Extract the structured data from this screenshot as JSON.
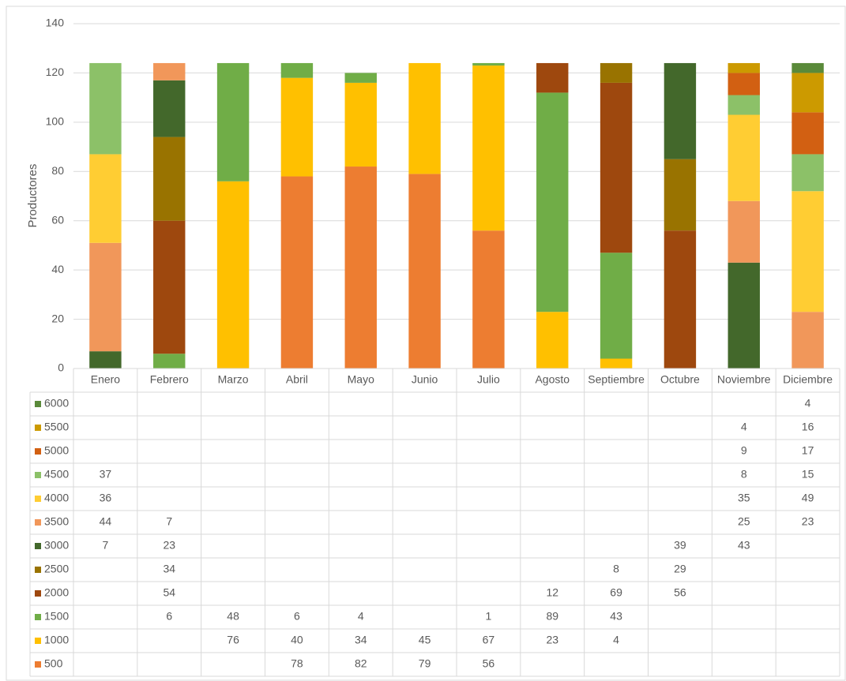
{
  "chart_data": {
    "type": "stacked_bar",
    "y_axis_label": "Productores",
    "categories": [
      "Enero",
      "Febrero",
      "Marzo",
      "Abril",
      "Mayo",
      "Junio",
      "Julio",
      "Agosto",
      "Septiembre",
      "Octubre",
      "Noviembre",
      "Diciembre"
    ],
    "ylim": [
      0,
      140
    ],
    "yticks": [
      0,
      20,
      40,
      60,
      80,
      100,
      120,
      140
    ],
    "grid": true,
    "series": [
      {
        "name": "500",
        "color": "#ed7d31",
        "values": [
          null,
          null,
          null,
          78,
          82,
          79,
          56,
          null,
          null,
          null,
          null,
          null
        ]
      },
      {
        "name": "1000",
        "color": "#ffc000",
        "values": [
          null,
          null,
          76,
          40,
          34,
          45,
          67,
          23,
          4,
          null,
          null,
          null
        ]
      },
      {
        "name": "1500",
        "color": "#70ad47",
        "values": [
          null,
          6,
          48,
          6,
          4,
          null,
          1,
          89,
          43,
          null,
          null,
          null
        ]
      },
      {
        "name": "2000",
        "color": "#9e480e",
        "values": [
          null,
          54,
          null,
          null,
          null,
          null,
          null,
          12,
          69,
          56,
          null,
          null
        ]
      },
      {
        "name": "2500",
        "color": "#997300",
        "values": [
          null,
          34,
          null,
          null,
          null,
          null,
          null,
          null,
          8,
          29,
          null,
          null
        ]
      },
      {
        "name": "3000",
        "color": "#43682b",
        "values": [
          7,
          23,
          null,
          null,
          null,
          null,
          null,
          null,
          null,
          39,
          43,
          null
        ]
      },
      {
        "name": "3500",
        "color": "#f1975a",
        "values": [
          44,
          7,
          null,
          null,
          null,
          null,
          null,
          null,
          null,
          null,
          25,
          23
        ]
      },
      {
        "name": "4000",
        "color": "#ffcd33",
        "values": [
          36,
          null,
          null,
          null,
          null,
          null,
          null,
          null,
          null,
          null,
          35,
          49
        ]
      },
      {
        "name": "4500",
        "color": "#8cc168",
        "values": [
          37,
          null,
          null,
          null,
          null,
          null,
          null,
          null,
          null,
          null,
          8,
          15
        ]
      },
      {
        "name": "5000",
        "color": "#d26012",
        "values": [
          null,
          null,
          null,
          null,
          null,
          null,
          null,
          null,
          null,
          null,
          9,
          17
        ]
      },
      {
        "name": "5500",
        "color": "#cc9a00",
        "values": [
          null,
          null,
          null,
          null,
          null,
          null,
          null,
          null,
          null,
          null,
          4,
          16
        ]
      },
      {
        "name": "6000",
        "color": "#5a8a3a",
        "values": [
          null,
          null,
          null,
          null,
          null,
          null,
          null,
          null,
          null,
          null,
          null,
          4
        ]
      }
    ]
  }
}
